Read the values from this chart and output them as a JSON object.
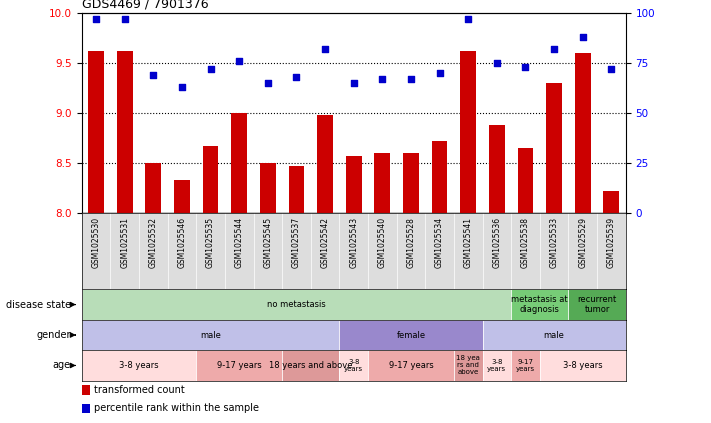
{
  "title": "GDS4469 / 7901376",
  "samples": [
    "GSM1025530",
    "GSM1025531",
    "GSM1025532",
    "GSM1025546",
    "GSM1025535",
    "GSM1025544",
    "GSM1025545",
    "GSM1025537",
    "GSM1025542",
    "GSM1025543",
    "GSM1025540",
    "GSM1025528",
    "GSM1025534",
    "GSM1025541",
    "GSM1025536",
    "GSM1025538",
    "GSM1025533",
    "GSM1025529",
    "GSM1025539"
  ],
  "transformed_count": [
    9.62,
    9.62,
    8.5,
    8.33,
    8.67,
    9.0,
    8.5,
    8.47,
    8.98,
    8.57,
    8.6,
    8.6,
    8.72,
    9.62,
    8.88,
    8.65,
    9.3,
    9.6,
    8.22
  ],
  "percentile_rank": [
    97,
    97,
    69,
    63,
    72,
    76,
    65,
    68,
    82,
    65,
    67,
    67,
    70,
    97,
    75,
    73,
    82,
    88,
    72
  ],
  "ylim_left": [
    8.0,
    10.0
  ],
  "ylim_right": [
    0,
    100
  ],
  "bar_color": "#cc0000",
  "scatter_color": "#0000cc",
  "yticks_left": [
    8.0,
    8.5,
    9.0,
    9.5,
    10.0
  ],
  "yticks_right": [
    0,
    25,
    50,
    75,
    100
  ],
  "background_color": "#ffffff",
  "disease_state_row": {
    "segments": [
      {
        "label": "no metastasis",
        "start": 0,
        "end": 15,
        "color": "#b8ddb8"
      },
      {
        "label": "metastasis at\ndiagnosis",
        "start": 15,
        "end": 17,
        "color": "#77cc77"
      },
      {
        "label": "recurrent\ntumor",
        "start": 17,
        "end": 19,
        "color": "#55aa55"
      }
    ]
  },
  "gender_row": {
    "segments": [
      {
        "label": "male",
        "start": 0,
        "end": 9,
        "color": "#c0c0e8"
      },
      {
        "label": "female",
        "start": 9,
        "end": 14,
        "color": "#9988cc"
      },
      {
        "label": "male",
        "start": 14,
        "end": 19,
        "color": "#c0c0e8"
      }
    ]
  },
  "age_row": {
    "segments": [
      {
        "label": "3-8 years",
        "start": 0,
        "end": 4,
        "color": "#ffdddd"
      },
      {
        "label": "9-17 years",
        "start": 4,
        "end": 7,
        "color": "#eeaaaa"
      },
      {
        "label": "18 years and above",
        "start": 7,
        "end": 9,
        "color": "#dd9999"
      },
      {
        "label": "3-8\nyears",
        "start": 9,
        "end": 10,
        "color": "#ffdddd"
      },
      {
        "label": "9-17 years",
        "start": 10,
        "end": 13,
        "color": "#eeaaaa"
      },
      {
        "label": "18 yea\nrs and\nabove",
        "start": 13,
        "end": 14,
        "color": "#dd9999"
      },
      {
        "label": "3-8\nyears",
        "start": 14,
        "end": 15,
        "color": "#ffdddd"
      },
      {
        "label": "9-17\nyears",
        "start": 15,
        "end": 16,
        "color": "#eeaaaa"
      },
      {
        "label": "3-8 years",
        "start": 16,
        "end": 19,
        "color": "#ffdddd"
      }
    ]
  },
  "legend_items": [
    {
      "label": "transformed count",
      "color": "#cc0000"
    },
    {
      "label": "percentile rank within the sample",
      "color": "#0000cc"
    }
  ]
}
